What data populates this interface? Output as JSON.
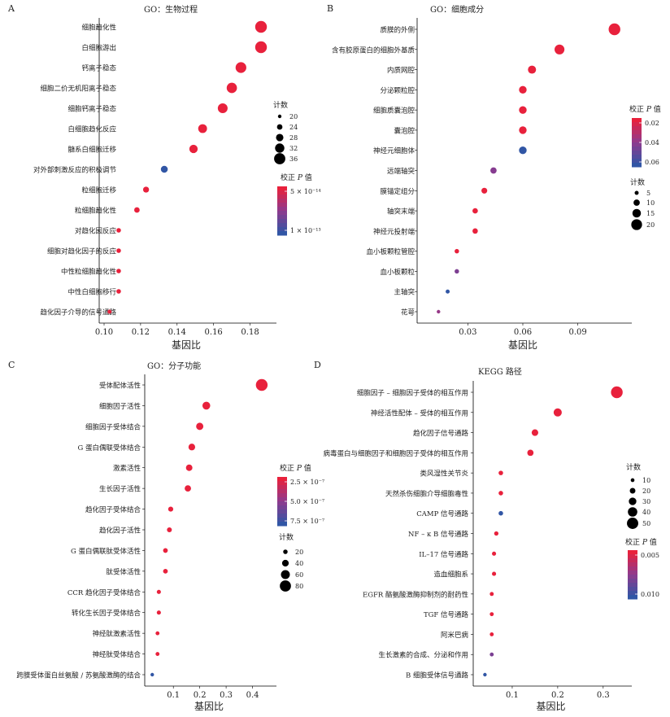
{
  "chart_data": [
    {
      "type": "scatter",
      "panel_letter": "A",
      "title": "GO：生物过程",
      "xlabel": "基因比",
      "xlim": [
        0.1,
        0.19
      ],
      "xticks": [
        0.1,
        0.12,
        0.14,
        0.16,
        0.18
      ],
      "tick_labels": [
        "0.10",
        "0.12",
        "0.14",
        "0.16",
        "0.18"
      ],
      "categories": [
        "细胞趋化性",
        "白细胞游出",
        "钙离子稳态",
        "细胞二价无机阳离子稳态",
        "细胞钙离子稳态",
        "白细胞趋化反应",
        "髓系白细胞迁移",
        "对外部刺激反应的积极调节",
        "粒细胞迁移",
        "粒细胞趋化性",
        "对趋化因反应",
        "细胞对趋化因子的反应",
        "中性粒细胞趋化性",
        "中性白细胞移行",
        "趋化因子介导的信号通路"
      ],
      "x": [
        0.186,
        0.186,
        0.175,
        0.17,
        0.165,
        0.154,
        0.149,
        0.133,
        0.123,
        0.118,
        0.108,
        0.108,
        0.108,
        0.108,
        0.103
      ],
      "count": [
        37,
        37,
        35,
        34,
        33,
        31,
        30,
        27,
        25,
        24,
        22,
        22,
        22,
        22,
        21
      ],
      "padj": [
        2e-15,
        2e-15,
        2e-15,
        2e-15,
        2e-15,
        2e-15,
        2e-15,
        1.5e-13,
        2e-15,
        2e-15,
        2e-15,
        2e-15,
        2e-15,
        2e-15,
        2e-15
      ],
      "size_legend": {
        "title": "计数",
        "values": [
          20,
          24,
          28,
          32,
          36
        ],
        "labels": [
          "20",
          "24",
          "28",
          "32",
          "36"
        ]
      },
      "color_legend": {
        "title_prefix": "校正",
        "title_italic": "P",
        "title_suffix": "值",
        "labels": [
          "5 × 10⁻¹⁴",
          "1 × 10⁻¹³"
        ]
      }
    },
    {
      "type": "scatter",
      "panel_letter": "B",
      "title": "GO：细胞成分",
      "xlabel": "基因比",
      "xlim": [
        0.005,
        0.115
      ],
      "xticks": [
        0.03,
        0.06,
        0.09
      ],
      "tick_labels": [
        "0.03",
        "0.06",
        "0.09"
      ],
      "categories": [
        "质膜的外侧",
        "含有胶原蛋白的细胞外基质",
        "内质网腔",
        "分泌颗粒腔",
        "细胞质囊泡腔",
        "囊泡腔",
        "神经元细胞体",
        "远端轴突",
        "膜锚定组分",
        "轴突末端",
        "神经元投射端",
        "血小板颗粒管腔",
        "血小板颗粒",
        "主轴突",
        "花萼"
      ],
      "x": [
        0.11,
        0.08,
        0.065,
        0.06,
        0.06,
        0.06,
        0.06,
        0.044,
        0.039,
        0.034,
        0.034,
        0.024,
        0.024,
        0.019,
        0.014
      ],
      "count": [
        22,
        18,
        14,
        13,
        13,
        13,
        13,
        10,
        9,
        8,
        8,
        6,
        6,
        5,
        4
      ],
      "padj": [
        0.003,
        0.003,
        0.003,
        0.003,
        0.003,
        0.003,
        0.062,
        0.035,
        0.003,
        0.003,
        0.003,
        0.003,
        0.038,
        0.062,
        0.03
      ],
      "size_legend": {
        "title": "计数",
        "values": [
          5,
          10,
          15,
          20
        ],
        "labels": [
          "5",
          "10",
          "15",
          "20"
        ]
      },
      "color_legend": {
        "title_prefix": "校正",
        "title_italic": "P",
        "title_suffix": "值",
        "labels": [
          "0.02",
          "0.04",
          "0.06"
        ]
      }
    },
    {
      "type": "scatter",
      "panel_letter": "C",
      "title": "GO：分子功能",
      "xlabel": "基因比",
      "xlim": [
        0.01,
        0.46
      ],
      "xticks": [
        0.1,
        0.2,
        0.3,
        0.4
      ],
      "tick_labels": [
        "0.1",
        "0.2",
        "0.3",
        "0.4"
      ],
      "categories": [
        "受体配体活性",
        "细胞因子活性",
        "细胞因子受体结合",
        "G 蛋白偶联受体结合",
        "激素活性",
        "生长因子活性",
        "趋化因子受体结合",
        "趋化因子活性",
        "G 蛋白偶联肽受体活性",
        "肽受体活性",
        "CCR 趋化因子受体结合",
        "转化生长因子受体结合",
        "神经肽激素活性",
        "神经肽受体结合",
        "跨膜受体蛋白丝氨酸 / 苏氨酸激酶的结合"
      ],
      "x": [
        0.435,
        0.225,
        0.2,
        0.17,
        0.16,
        0.155,
        0.09,
        0.085,
        0.07,
        0.07,
        0.045,
        0.045,
        0.04,
        0.04,
        0.02
      ],
      "count": [
        85,
        50,
        45,
        40,
        38,
        37,
        25,
        24,
        22,
        22,
        17,
        17,
        15,
        15,
        12
      ],
      "padj": [
        1e-08,
        1e-08,
        1e-08,
        1e-08,
        1e-08,
        1e-08,
        1e-08,
        1e-08,
        1e-08,
        1e-08,
        1e-08,
        1e-08,
        1e-08,
        1e-08,
        9.5e-07
      ],
      "size_legend": {
        "title": "计数",
        "values": [
          20,
          40,
          60,
          80
        ],
        "labels": [
          "20",
          "40",
          "60",
          "80"
        ]
      },
      "color_legend": {
        "title_prefix": "校正",
        "title_italic": "P",
        "title_suffix": "值",
        "labels": [
          "2.5 × 10⁻⁷",
          "5.0 × 10⁻⁷",
          "7.5 × 10⁻⁷"
        ]
      }
    },
    {
      "type": "scatter",
      "panel_letter": "D",
      "title": "KEGG 路径",
      "xlabel": "基因比",
      "xlim": [
        0.025,
        0.345
      ],
      "xticks": [
        0.1,
        0.2,
        0.3
      ],
      "tick_labels": [
        "0.1",
        "0.2",
        "0.3"
      ],
      "categories": [
        "细胞因子 – 细胞因子受体的相互作用",
        "神经活性配体 – 受体的相互作用",
        "趋化因子信号通路",
        "病毒蛋白与细胞因子和细胞因子受体的相互作用",
        "类风湿性关节炎",
        "天然杀伤细胞介导细胞毒性",
        "CAMP 信号通路",
        "NF – κ B 信号通路",
        "IL–17 信号通路",
        "造血细胞系",
        "EGFR 酪氨酸激酶抑制剂的耐药性",
        "TGF 信号通路",
        "阿米巴病",
        "生长激素的合成、分泌和作用",
        "B 细胞受体信号通路"
      ],
      "x": [
        0.33,
        0.2,
        0.15,
        0.14,
        0.075,
        0.075,
        0.075,
        0.065,
        0.06,
        0.06,
        0.055,
        0.055,
        0.055,
        0.055,
        0.04
      ],
      "count": [
        52,
        33,
        25,
        23,
        14,
        14,
        14,
        13,
        12,
        12,
        11,
        11,
        11,
        11,
        9
      ],
      "padj": [
        0.001,
        0.001,
        0.001,
        0.001,
        0.001,
        0.001,
        0.0125,
        0.001,
        0.001,
        0.001,
        0.001,
        0.001,
        0.001,
        0.008,
        0.0125
      ],
      "size_legend": {
        "title": "计数",
        "values": [
          10,
          20,
          30,
          40,
          50
        ],
        "labels": [
          "10",
          "20",
          "30",
          "40",
          "50"
        ]
      },
      "color_legend": {
        "title_prefix": "校正",
        "title_italic": "P",
        "title_suffix": "值",
        "labels": [
          "0.005",
          "0.010"
        ]
      }
    }
  ],
  "colors": {
    "low_p": "#e8213c",
    "mid_p": "#8e3a8e",
    "high_p": "#3156a5",
    "axis": "#000000",
    "text": "#222222"
  }
}
